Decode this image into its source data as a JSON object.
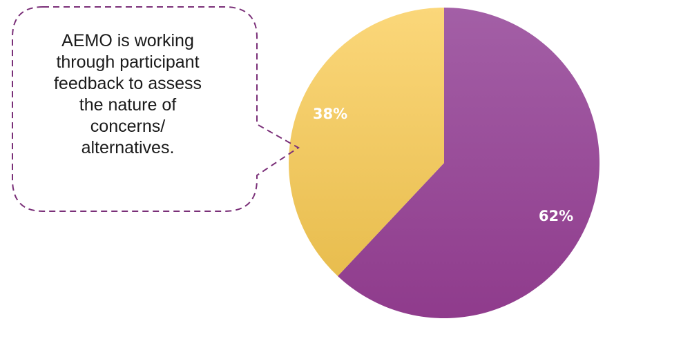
{
  "chart_data": {
    "type": "pie",
    "title": "",
    "slices": [
      {
        "label": "62%",
        "value": 62,
        "color_top": "#a35fa6",
        "color_bottom": "#8f3b8c"
      },
      {
        "label": "38%",
        "value": 38,
        "color_top": "#fbd77a",
        "color_bottom": "#e8bd4e"
      }
    ],
    "start_angle_deg": 0,
    "direction": "clockwise",
    "label_color": "#ffffff"
  },
  "callout": {
    "lines": [
      "AEMO is working",
      "through participant",
      "feedback to assess",
      "the nature of",
      "concerns/",
      "alternatives."
    ],
    "border_color": "#7a2f78"
  }
}
